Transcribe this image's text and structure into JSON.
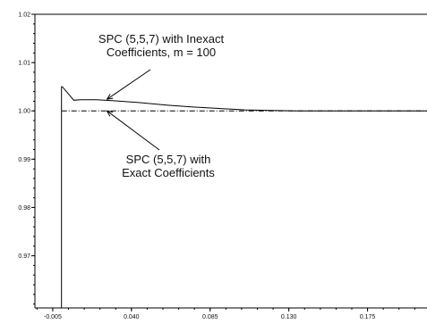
{
  "chart_data": {
    "type": "line",
    "title": "",
    "xlabel": "",
    "ylabel": "",
    "xlim": [
      -0.0152,
      0.209
    ],
    "ylim": [
      0.9592,
      1.02
    ],
    "x_ticks": [
      -0.005,
      0.04,
      0.085,
      0.13,
      0.175
    ],
    "x_tick_labels": [
      "-0.005",
      "0.040",
      "0.085",
      "0.130",
      "0.175"
    ],
    "y_ticks": [
      0.97,
      0.98,
      0.99,
      1.0,
      1.01,
      1.02
    ],
    "y_tick_labels": [
      "0.97",
      "0.98",
      "0.99",
      "1.00",
      "1.01",
      "1.02"
    ],
    "grid": false,
    "legend": "none",
    "series": [
      {
        "style": "solid",
        "color": "#000000",
        "x": [
          0.0,
          0.0,
          0.0005,
          0.007,
          0.011,
          0.02,
          0.03,
          0.045,
          0.06,
          0.075,
          0.09,
          0.105,
          0.12,
          0.135,
          0.15,
          0.165,
          0.18,
          0.195,
          0.209
        ],
        "y": [
          0.9592,
          1.005,
          1.005,
          1.0022,
          1.0023,
          1.0023,
          1.0021,
          1.0017,
          1.0012,
          1.0008,
          1.0005,
          1.0002,
          1.0001,
          1.0,
          1.0,
          1.0,
          1.0,
          1.0,
          1.0
        ]
      },
      {
        "style": "dashdot",
        "color": "#000000",
        "x": [
          0.0,
          0.209
        ],
        "y": [
          1.0,
          1.0
        ]
      }
    ],
    "annotations": [
      {
        "lines": [
          "SPC (5,5,7) with Inexact",
          "Coefficients, m = 100"
        ],
        "arrow_to": [
          0.026,
          1.0024
        ]
      },
      {
        "lines": [
          "SPC (5,5,7) with",
          "Exact Coefficients"
        ],
        "arrow_to": [
          0.026,
          1.0
        ]
      }
    ]
  }
}
